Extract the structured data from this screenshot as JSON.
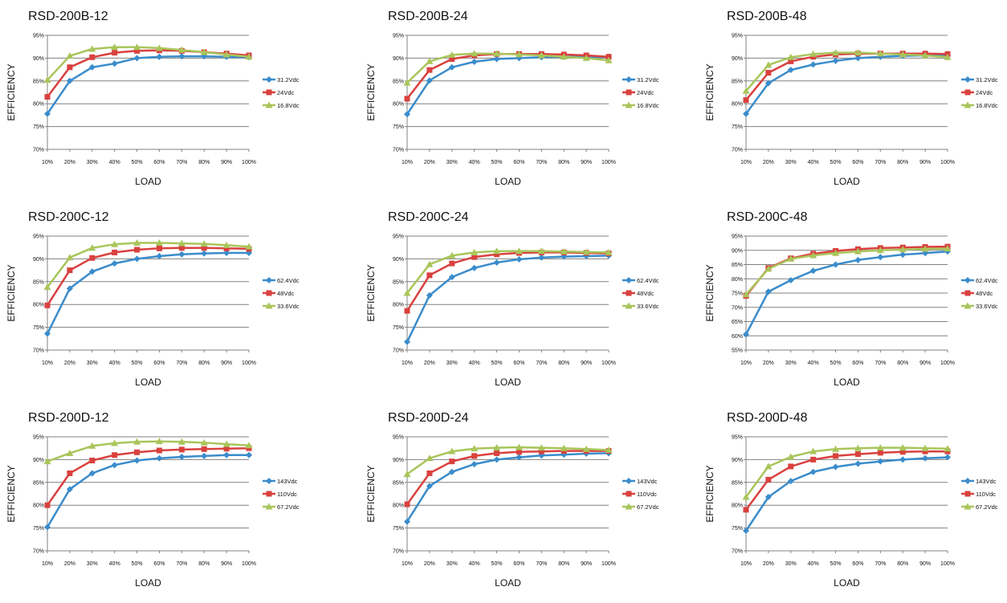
{
  "colors": {
    "series": [
      "#3a8ccb",
      "#d9413e",
      "#a9c55a"
    ],
    "grid": "#808080",
    "axis": "#808080"
  },
  "chart_data": [
    {
      "type": "line",
      "title": "RSD-200B-12",
      "xlabel": "LOAD",
      "ylabel": "EFFICIENCY",
      "ylim": [
        70,
        95
      ],
      "yticks": [
        "70%",
        "75%",
        "80%",
        "85%",
        "90%",
        "95%"
      ],
      "categories": [
        "10%",
        "20%",
        "30%",
        "40%",
        "50%",
        "60%",
        "70%",
        "80%",
        "90%",
        "100%"
      ],
      "grid": true,
      "legend": "right",
      "series": [
        {
          "name": "31.2Vdc",
          "marker": "diamond",
          "values": [
            77.8,
            85.0,
            88.0,
            88.8,
            90.0,
            90.3,
            90.4,
            90.4,
            90.3,
            90.2
          ]
        },
        {
          "name": "24Vdc",
          "marker": "square",
          "values": [
            81.5,
            88.0,
            90.2,
            91.2,
            91.6,
            91.7,
            91.6,
            91.3,
            91.0,
            90.6
          ]
        },
        {
          "name": "16.8Vdc",
          "marker": "triangle",
          "values": [
            85.2,
            90.5,
            92.0,
            92.4,
            92.4,
            92.2,
            91.8,
            91.3,
            90.8,
            90.3
          ]
        }
      ]
    },
    {
      "type": "line",
      "title": "RSD-200B-24",
      "xlabel": "LOAD",
      "ylabel": "EFFICIENCY",
      "ylim": [
        70,
        95
      ],
      "yticks": [
        "70%",
        "75%",
        "80%",
        "85%",
        "90%",
        "95%"
      ],
      "categories": [
        "10%",
        "20%",
        "30%",
        "40%",
        "50%",
        "60%",
        "70%",
        "80%",
        "90%",
        "100%"
      ],
      "grid": true,
      "legend": "right",
      "series": [
        {
          "name": "31.2Vdc",
          "marker": "diamond",
          "values": [
            77.7,
            85.1,
            88.0,
            89.2,
            89.8,
            90.0,
            90.2,
            90.3,
            90.3,
            90.3
          ]
        },
        {
          "name": "24Vdc",
          "marker": "square",
          "values": [
            81.1,
            87.4,
            89.8,
            90.6,
            90.9,
            90.9,
            90.9,
            90.8,
            90.6,
            90.3
          ]
        },
        {
          "name": "16.8Vdc",
          "marker": "triangle",
          "values": [
            84.6,
            89.3,
            90.7,
            91.0,
            91.0,
            90.8,
            90.6,
            90.3,
            90.0,
            89.5
          ]
        }
      ]
    },
    {
      "type": "line",
      "title": "RSD-200B-48",
      "xlabel": "LOAD",
      "ylabel": "EFFICIENCY",
      "ylim": [
        70,
        95
      ],
      "yticks": [
        "70%",
        "75%",
        "80%",
        "85%",
        "90%",
        "95%"
      ],
      "categories": [
        "10%",
        "20%",
        "30%",
        "40%",
        "50%",
        "60%",
        "70%",
        "80%",
        "90%",
        "100%"
      ],
      "grid": true,
      "legend": "right",
      "series": [
        {
          "name": "31.2Vdc",
          "marker": "diamond",
          "values": [
            77.8,
            84.5,
            87.4,
            88.6,
            89.4,
            90.0,
            90.3,
            90.5,
            90.6,
            90.6
          ]
        },
        {
          "name": "24Vdc",
          "marker": "square",
          "values": [
            80.8,
            86.8,
            89.3,
            90.3,
            90.8,
            91.0,
            91.0,
            91.0,
            91.0,
            90.9
          ]
        },
        {
          "name": "16.8Vdc",
          "marker": "triangle",
          "values": [
            82.8,
            88.5,
            90.2,
            90.9,
            91.2,
            91.2,
            91.0,
            90.8,
            90.6,
            90.2
          ]
        }
      ]
    },
    {
      "type": "line",
      "title": "RSD-200C-12",
      "xlabel": "LOAD",
      "ylabel": "EFFICIENCY",
      "ylim": [
        70,
        95
      ],
      "yticks": [
        "70%",
        "75%",
        "80%",
        "85%",
        "90%",
        "95%"
      ],
      "categories": [
        "10%",
        "20%",
        "30%",
        "40%",
        "50%",
        "60%",
        "70%",
        "80%",
        "90%",
        "100%"
      ],
      "grid": true,
      "legend": "right",
      "series": [
        {
          "name": "62.4Vdc",
          "marker": "diamond",
          "values": [
            73.6,
            83.5,
            87.2,
            89.0,
            90.0,
            90.6,
            91.0,
            91.2,
            91.3,
            91.3
          ]
        },
        {
          "name": "48Vdc",
          "marker": "square",
          "values": [
            79.8,
            87.5,
            90.2,
            91.4,
            92.0,
            92.3,
            92.4,
            92.4,
            92.3,
            92.2
          ]
        },
        {
          "name": "33.6Vdc",
          "marker": "triangle",
          "values": [
            83.8,
            90.3,
            92.4,
            93.2,
            93.5,
            93.5,
            93.4,
            93.3,
            93.0,
            92.7
          ]
        }
      ]
    },
    {
      "type": "line",
      "title": "RSD-200C-24",
      "xlabel": "LOAD",
      "ylabel": "EFFICIENCY",
      "ylim": [
        70,
        95
      ],
      "yticks": [
        "70%",
        "75%",
        "80%",
        "85%",
        "90%",
        "95%"
      ],
      "categories": [
        "10%",
        "20%",
        "30%",
        "40%",
        "50%",
        "60%",
        "70%",
        "80%",
        "90%",
        "100%"
      ],
      "grid": true,
      "legend": "right",
      "series": [
        {
          "name": "62.4Vdc",
          "marker": "diamond",
          "values": [
            71.8,
            82.0,
            86.0,
            88.0,
            89.2,
            89.9,
            90.3,
            90.5,
            90.6,
            90.7
          ]
        },
        {
          "name": "48Vdc",
          "marker": "square",
          "values": [
            78.6,
            86.4,
            89.0,
            90.4,
            91.0,
            91.3,
            91.4,
            91.4,
            91.3,
            91.2
          ]
        },
        {
          "name": "33.6Vdc",
          "marker": "triangle",
          "values": [
            82.5,
            88.8,
            90.7,
            91.4,
            91.7,
            91.7,
            91.7,
            91.6,
            91.5,
            91.4
          ]
        }
      ]
    },
    {
      "type": "line",
      "title": "RSD-200C-48",
      "xlabel": "LOAD",
      "ylabel": "EFFICIENCY",
      "ylim": [
        55,
        95
      ],
      "yticks": [
        "55%",
        "60%",
        "65%",
        "70%",
        "75%",
        "80%",
        "85%",
        "90%",
        "95%"
      ],
      "categories": [
        "10%",
        "20%",
        "30%",
        "40%",
        "50%",
        "60%",
        "70%",
        "80%",
        "90%",
        "100%"
      ],
      "grid": true,
      "legend": "right",
      "series": [
        {
          "name": "62.4Vdc",
          "marker": "diamond",
          "values": [
            60.5,
            75.5,
            79.5,
            82.8,
            85.0,
            86.6,
            87.6,
            88.5,
            89.0,
            89.6
          ]
        },
        {
          "name": "48Vdc",
          "marker": "square",
          "values": [
            74.0,
            83.8,
            87.2,
            88.8,
            89.8,
            90.4,
            90.8,
            91.0,
            91.2,
            91.3
          ]
        },
        {
          "name": "33.6Vdc",
          "marker": "triangle",
          "values": [
            74.5,
            83.5,
            87.0,
            88.2,
            89.0,
            89.6,
            90.0,
            90.3,
            90.5,
            90.6
          ]
        }
      ]
    },
    {
      "type": "line",
      "title": "RSD-200D-12",
      "xlabel": "LOAD",
      "ylabel": "EFFICIENCY",
      "ylim": [
        70,
        95
      ],
      "yticks": [
        "70%",
        "75%",
        "80%",
        "85%",
        "90%",
        "95%"
      ],
      "categories": [
        "10%",
        "20%",
        "30%",
        "40%",
        "50%",
        "60%",
        "70%",
        "80%",
        "90%",
        "100%"
      ],
      "grid": true,
      "legend": "right",
      "series": [
        {
          "name": "143Vdc",
          "marker": "diamond",
          "values": [
            75.2,
            83.5,
            87.0,
            88.8,
            89.8,
            90.3,
            90.6,
            90.8,
            91.0,
            91.0
          ]
        },
        {
          "name": "110Vdc",
          "marker": "square",
          "values": [
            80.0,
            87.0,
            89.8,
            91.0,
            91.6,
            92.0,
            92.2,
            92.3,
            92.4,
            92.5
          ]
        },
        {
          "name": "67.2Vdc",
          "marker": "triangle",
          "values": [
            89.6,
            91.4,
            93.0,
            93.6,
            93.9,
            94.0,
            93.9,
            93.7,
            93.4,
            93.1
          ]
        }
      ]
    },
    {
      "type": "line",
      "title": "RSD-200D-24",
      "xlabel": "LOAD",
      "ylabel": "EFFICIENCY",
      "ylim": [
        70,
        95
      ],
      "yticks": [
        "70%",
        "75%",
        "80%",
        "85%",
        "90%",
        "95%"
      ],
      "categories": [
        "10%",
        "20%",
        "30%",
        "40%",
        "50%",
        "60%",
        "70%",
        "80%",
        "90%",
        "100%"
      ],
      "grid": true,
      "legend": "right",
      "series": [
        {
          "name": "143Vdc",
          "marker": "diamond",
          "values": [
            76.4,
            84.2,
            87.3,
            89.0,
            90.0,
            90.5,
            90.9,
            91.1,
            91.3,
            91.4
          ]
        },
        {
          "name": "110Vdc",
          "marker": "square",
          "values": [
            80.2,
            87.0,
            89.6,
            90.8,
            91.4,
            91.7,
            91.8,
            91.9,
            91.9,
            91.9
          ]
        },
        {
          "name": "67.2Vdc",
          "marker": "triangle",
          "values": [
            86.8,
            90.3,
            91.8,
            92.4,
            92.6,
            92.7,
            92.6,
            92.5,
            92.3,
            92.1
          ]
        }
      ]
    },
    {
      "type": "line",
      "title": "RSD-200D-48",
      "xlabel": "LOAD",
      "ylabel": "EFFICIENCY",
      "ylim": [
        70,
        95
      ],
      "yticks": [
        "70%",
        "75%",
        "80%",
        "85%",
        "90%",
        "95%"
      ],
      "categories": [
        "10%",
        "20%",
        "30%",
        "40%",
        "50%",
        "60%",
        "70%",
        "80%",
        "90%",
        "100%"
      ],
      "grid": true,
      "legend": "right",
      "series": [
        {
          "name": "143Vdc",
          "marker": "diamond",
          "values": [
            74.4,
            81.8,
            85.3,
            87.3,
            88.4,
            89.1,
            89.6,
            90.0,
            90.3,
            90.5
          ]
        },
        {
          "name": "110Vdc",
          "marker": "square",
          "values": [
            79.0,
            85.6,
            88.5,
            90.0,
            90.8,
            91.2,
            91.5,
            91.7,
            91.8,
            91.8
          ]
        },
        {
          "name": "67.2Vdc",
          "marker": "triangle",
          "values": [
            81.8,
            88.5,
            90.6,
            91.8,
            92.3,
            92.5,
            92.6,
            92.6,
            92.5,
            92.4
          ]
        }
      ]
    }
  ]
}
